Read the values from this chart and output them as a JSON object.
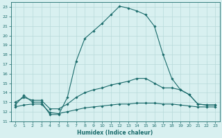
{
  "xlabel": "Humidex (Indice chaleur)",
  "background_color": "#d8f0f0",
  "grid_color": "#b8dada",
  "line_color": "#1a6b6b",
  "xlim": [
    -0.5,
    23.5
  ],
  "ylim": [
    11,
    23.5
  ],
  "xticks": [
    0,
    1,
    2,
    3,
    4,
    5,
    6,
    7,
    8,
    9,
    10,
    11,
    12,
    13,
    14,
    15,
    16,
    17,
    18,
    19,
    20,
    21,
    22,
    23
  ],
  "yticks": [
    11,
    12,
    13,
    14,
    15,
    16,
    17,
    18,
    19,
    20,
    21,
    22,
    23
  ],
  "curve1_x": [
    0,
    1,
    2,
    3,
    4,
    5,
    6,
    7,
    8,
    9,
    10,
    11,
    12,
    13,
    14,
    15,
    16,
    17,
    18,
    19,
    20,
    21,
    22,
    23
  ],
  "curve1_y": [
    12.7,
    13.7,
    13.0,
    13.0,
    11.7,
    11.7,
    13.5,
    17.3,
    19.7,
    20.5,
    21.3,
    22.2,
    23.1,
    22.9,
    22.6,
    22.2,
    21.0,
    18.0,
    15.5,
    14.3,
    13.8,
    12.8,
    12.7,
    12.7
  ],
  "curve2_x": [
    0,
    1,
    2,
    3,
    4,
    5,
    6,
    7,
    8,
    9,
    10,
    11,
    12,
    13,
    14,
    15,
    16,
    17,
    18,
    19,
    20,
    21,
    22,
    23
  ],
  "curve2_y": [
    13.0,
    13.5,
    13.2,
    13.2,
    12.3,
    12.3,
    12.8,
    13.5,
    14.0,
    14.3,
    14.5,
    14.8,
    15.0,
    15.2,
    15.5,
    15.5,
    15.0,
    14.5,
    14.5,
    14.3,
    13.8,
    12.8,
    12.7,
    12.7
  ],
  "curve3_x": [
    0,
    1,
    2,
    3,
    4,
    5,
    6,
    7,
    8,
    9,
    10,
    11,
    12,
    13,
    14,
    15,
    16,
    17,
    18,
    19,
    20,
    21,
    22,
    23
  ],
  "curve3_y": [
    12.5,
    12.7,
    12.8,
    12.8,
    11.9,
    11.8,
    12.0,
    12.2,
    12.4,
    12.5,
    12.6,
    12.7,
    12.8,
    12.8,
    12.9,
    12.9,
    12.9,
    12.8,
    12.8,
    12.7,
    12.6,
    12.5,
    12.5,
    12.5
  ]
}
